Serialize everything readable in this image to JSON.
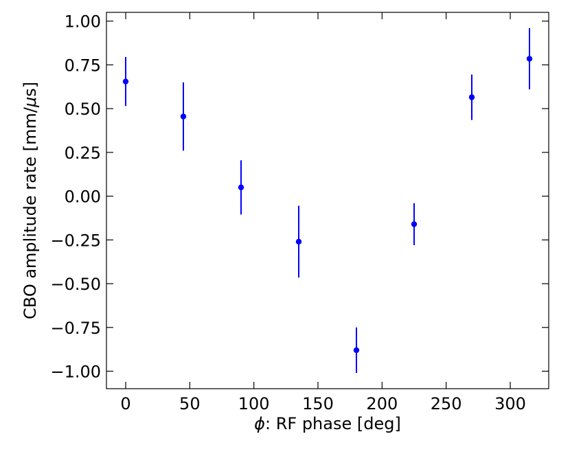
{
  "chart_data": {
    "type": "scatter",
    "xlabel_symbol": "ϕ",
    "xlabel_text": ": RF phase [deg]",
    "ylabel_prefix": "CBO amplitude rate [mm/",
    "ylabel_symbol": "μ",
    "ylabel_suffix": "s]",
    "xlim": [
      -15,
      330
    ],
    "ylim": [
      -1.1,
      1.05
    ],
    "xticks": [
      0,
      50,
      100,
      150,
      200,
      250,
      300
    ],
    "xtick_labels": [
      "0",
      "50",
      "100",
      "150",
      "200",
      "250",
      "300"
    ],
    "yticks": [
      1.0,
      0.75,
      0.5,
      0.25,
      0.0,
      -0.25,
      -0.5,
      -0.75,
      -1.0
    ],
    "ytick_labels": [
      "1.00",
      "0.75",
      "0.50",
      "0.25",
      "0.00",
      "−0.25",
      "−0.50",
      "−0.75",
      "−1.00"
    ],
    "grid": false,
    "color": "#0000ff",
    "series": [
      {
        "x": [
          0,
          45,
          90,
          135,
          180,
          225,
          270,
          315
        ],
        "y": [
          0.655,
          0.455,
          0.05,
          -0.26,
          -0.88,
          -0.16,
          0.565,
          0.785
        ],
        "yerr": [
          0.14,
          0.195,
          0.155,
          0.205,
          0.13,
          0.12,
          0.13,
          0.175
        ]
      }
    ]
  }
}
